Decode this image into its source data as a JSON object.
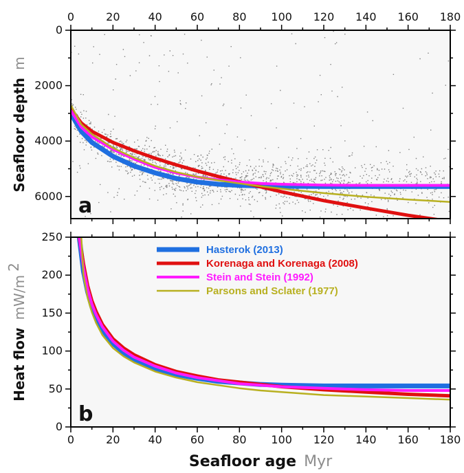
{
  "chart_data": [
    {
      "type": "scatter",
      "panel_label": "a",
      "ylabel": "Seafloor depth",
      "yunit": "m",
      "xlim": [
        0,
        180
      ],
      "ylim": [
        6800,
        0
      ],
      "y_inverted": true,
      "xticks": [
        "0",
        "20",
        "40",
        "60",
        "80",
        "100",
        "120",
        "140",
        "160",
        "180"
      ],
      "yticks": [
        "0",
        "2000",
        "4000",
        "6000"
      ],
      "x_axis_position": "top",
      "background": "#f7f7f7",
      "scatter_color": "#808080",
      "series": [
        {
          "name": "Hasterok (2013)",
          "color": "#1f6fe0",
          "x": [
            0,
            5,
            10,
            20,
            30,
            40,
            50,
            60,
            70,
            80,
            90,
            100,
            120,
            140,
            160,
            180
          ],
          "y": [
            3000,
            3650,
            4050,
            4550,
            4900,
            5150,
            5350,
            5480,
            5560,
            5600,
            5620,
            5630,
            5640,
            5640,
            5640,
            5640
          ]
        },
        {
          "name": "Korenaga and Korenaga (2008)",
          "color": "#e01010",
          "x": [
            0,
            5,
            10,
            20,
            30,
            40,
            50,
            60,
            70,
            80,
            90,
            100,
            120,
            140,
            160,
            175
          ],
          "y": [
            2850,
            3350,
            3650,
            4050,
            4350,
            4620,
            4860,
            5080,
            5280,
            5470,
            5650,
            5830,
            6150,
            6420,
            6680,
            6850
          ]
        },
        {
          "name": "Stein and Stein (1992)",
          "color": "#ff1aff",
          "x": [
            0,
            5,
            10,
            20,
            30,
            40,
            50,
            60,
            70,
            80,
            90,
            100,
            120,
            140,
            160,
            180
          ],
          "y": [
            2900,
            3500,
            3850,
            4300,
            4650,
            4950,
            5150,
            5300,
            5400,
            5480,
            5530,
            5560,
            5590,
            5600,
            5600,
            5600
          ]
        },
        {
          "name": "Parsons and Sclater (1977)",
          "color": "#b8b020",
          "x": [
            0,
            5,
            10,
            20,
            30,
            40,
            50,
            60,
            70,
            80,
            90,
            100,
            120,
            140,
            160,
            180
          ],
          "y": [
            2700,
            3400,
            3750,
            4250,
            4600,
            4900,
            5120,
            5290,
            5420,
            5530,
            5630,
            5720,
            5880,
            6010,
            6110,
            6200
          ]
        }
      ]
    },
    {
      "type": "line",
      "panel_label": "b",
      "ylabel": "Heat flow",
      "yunit": "mW/m",
      "yunit_sup": "2",
      "xlabel": "Seafloor age",
      "xunit": "Myr",
      "xlim": [
        0,
        180
      ],
      "ylim": [
        0,
        250
      ],
      "xticks": [
        "0",
        "20",
        "40",
        "60",
        "80",
        "100",
        "120",
        "140",
        "160",
        "180"
      ],
      "yticks": [
        "0",
        "50",
        "100",
        "150",
        "200",
        "250"
      ],
      "background": "#f7f7f7",
      "legend_position": "top-center",
      "series": [
        {
          "name": "Hasterok (2013)",
          "color": "#1f6fe0",
          "x": [
            4,
            6,
            8,
            10,
            12,
            15,
            20,
            25,
            30,
            40,
            50,
            60,
            70,
            80,
            90,
            100,
            120,
            140,
            160,
            180
          ],
          "y": [
            250,
            205,
            178,
            158,
            144,
            128,
            110,
            98,
            89,
            77,
            69,
            64,
            60,
            58,
            56,
            55,
            54,
            54,
            54,
            54
          ]
        },
        {
          "name": "Korenaga and Korenaga (2008)",
          "color": "#e01010",
          "x": [
            4,
            6,
            8,
            10,
            12,
            15,
            20,
            25,
            30,
            40,
            50,
            60,
            70,
            80,
            90,
            100,
            120,
            140,
            160,
            180
          ],
          "y": [
            250,
            215,
            186,
            166,
            152,
            135,
            116,
            104,
            95,
            82,
            73,
            67,
            62,
            59,
            56,
            53,
            49,
            46,
            43,
            41
          ]
        },
        {
          "name": "Stein and Stein (1992)",
          "color": "#ff1aff",
          "x": [
            4,
            6,
            8,
            10,
            12,
            15,
            20,
            25,
            30,
            40,
            50,
            60,
            70,
            80,
            90,
            100,
            120,
            140,
            160,
            180
          ],
          "y": [
            250,
            210,
            182,
            162,
            148,
            132,
            113,
            101,
            92,
            80,
            71,
            65,
            61,
            57,
            55,
            53,
            51,
            49,
            48,
            48
          ]
        },
        {
          "name": "Parsons and Sclater (1977)",
          "color": "#b8b020",
          "x": [
            5,
            6,
            8,
            10,
            12,
            15,
            20,
            25,
            30,
            40,
            50,
            60,
            70,
            80,
            90,
            100,
            120,
            140,
            160,
            180
          ],
          "y": [
            250,
            200,
            170,
            151,
            137,
            121,
            104,
            93,
            85,
            73,
            65,
            59,
            55,
            51,
            48,
            46,
            42,
            40,
            38,
            36
          ]
        }
      ]
    }
  ]
}
